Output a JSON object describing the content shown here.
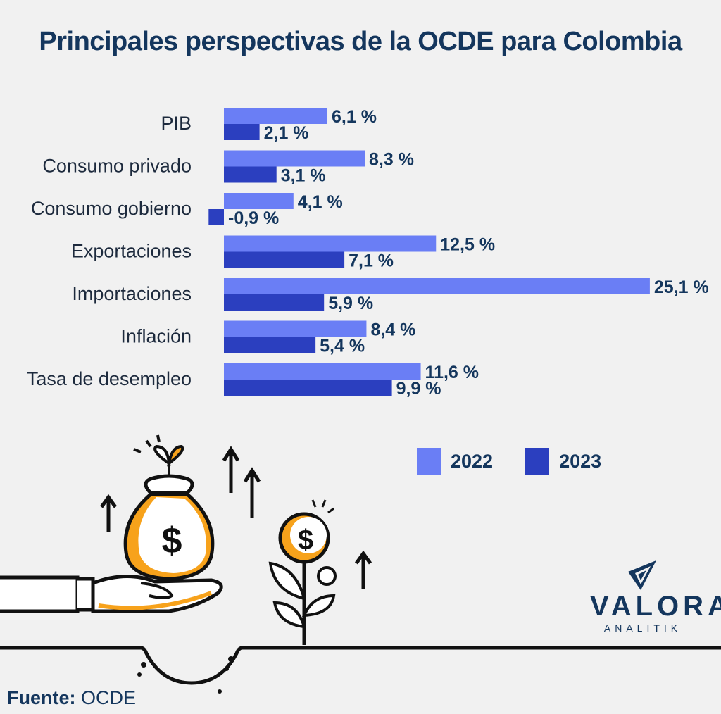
{
  "title": "Principales perspectivas de la OCDE para Colombia",
  "chart_data": {
    "type": "bar",
    "orientation": "horizontal",
    "title": "Principales perspectivas de la OCDE para Colombia",
    "categories": [
      "PIB",
      "Consumo privado",
      "Consumo gobierno",
      "Exportaciones",
      "Importaciones",
      "Inflación",
      "Tasa de desempleo"
    ],
    "series": [
      {
        "name": "2022",
        "color": "#6a7ef5",
        "values": [
          6.1,
          8.3,
          4.1,
          12.5,
          25.1,
          8.4,
          11.6
        ],
        "labels": [
          "6,1 %",
          "8,3 %",
          "4,1 %",
          "12,5 %",
          "25,1 %",
          "8,4 %",
          "11,6 %"
        ]
      },
      {
        "name": "2023",
        "color": "#2b3fbf",
        "values": [
          2.1,
          3.1,
          -0.9,
          7.1,
          5.9,
          5.4,
          9.9
        ],
        "labels": [
          "2,1 %",
          "3,1 %",
          "-0,9 %",
          "7,1 %",
          "5,9 %",
          "5,4 %",
          "9,9 %"
        ]
      }
    ],
    "legend_position": "bottom-right",
    "grid": false
  },
  "legend": {
    "items": [
      {
        "label": "2022",
        "color": "#6a7ef5"
      },
      {
        "label": "2023",
        "color": "#2b3fbf"
      }
    ]
  },
  "logo": {
    "word": "VALORA",
    "sub": "ANALITIK"
  },
  "source": {
    "key": "Fuente:",
    "value": "OCDE"
  },
  "colors": {
    "title": "#14365d",
    "accent": "#f7a21b",
    "background": "#f1f1f1"
  }
}
